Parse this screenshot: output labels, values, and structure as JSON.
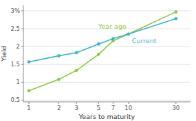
{
  "chart_data": {
    "type": "line",
    "xlabel": "Years to maturity",
    "ylabel": "Yield",
    "x": [
      1,
      2,
      3,
      5,
      7,
      10,
      30
    ],
    "series": [
      {
        "name": "Year ago",
        "color": "#8dc63f",
        "marker": "circle",
        "values": [
          0.76,
          1.08,
          1.33,
          1.78,
          2.16,
          2.35,
          2.97
        ]
      },
      {
        "name": "Current",
        "color": "#3ab4c8",
        "marker": "circle",
        "values": [
          1.57,
          1.74,
          1.83,
          2.07,
          2.22,
          2.35,
          2.78
        ]
      }
    ],
    "log": "x",
    "xlim": [
      0.88,
      42
    ],
    "xticks": [
      1,
      2,
      3,
      5,
      7,
      10,
      30
    ],
    "ylim": [
      0.45,
      3.15
    ],
    "yticks": [
      0.5,
      1,
      1.5,
      2,
      2.5,
      {
        "value": 3,
        "label": "3%"
      }
    ],
    "grid": true
  }
}
